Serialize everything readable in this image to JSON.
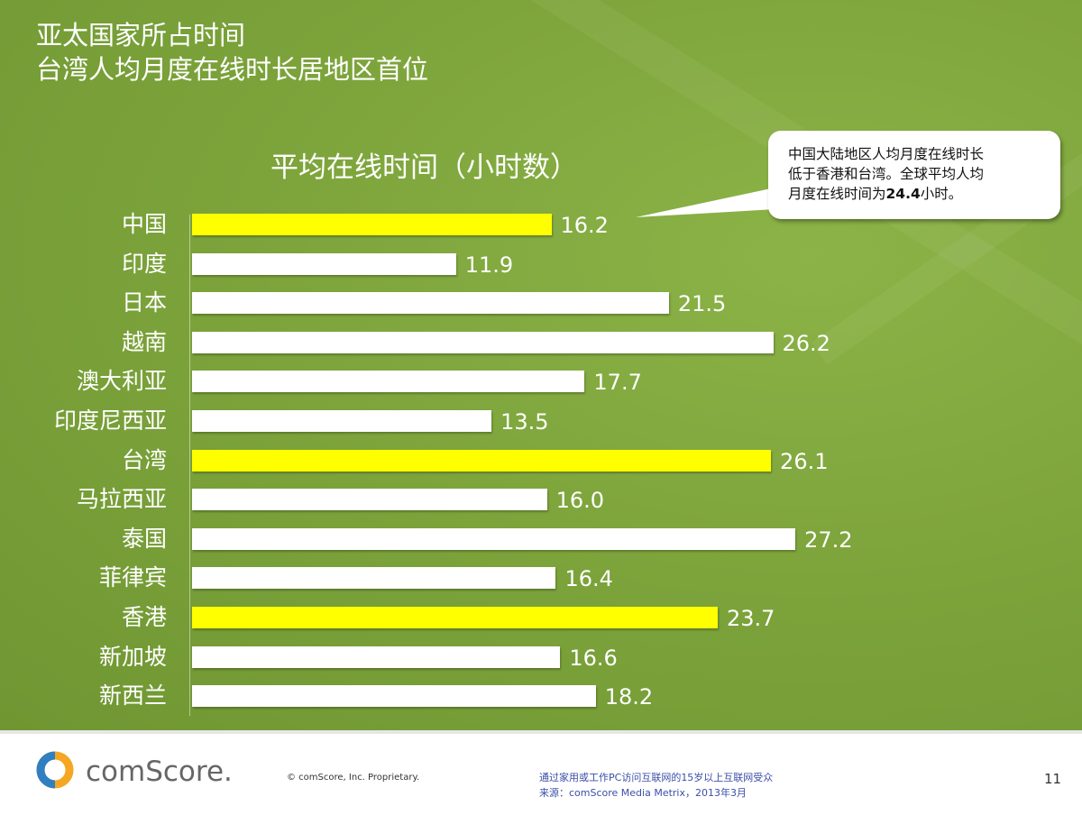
{
  "title": {
    "line1": "亚太国家所占时间",
    "line2": "台湾人均月度在线时长居地区首位"
  },
  "callout": {
    "line1": "中国大陆地区人均月度在线时长",
    "line2": "低于香港和台湾。全球平均人均",
    "line3_pre": "月度在线时间为",
    "line3_bold": "24.4",
    "line3_post": "小时。"
  },
  "chart_data": {
    "type": "bar",
    "orientation": "horizontal",
    "title": "平均在线时间（小时数）",
    "categories": [
      "中国",
      "印度",
      "日本",
      "越南",
      "澳大利亚",
      "印度尼西亚",
      "台湾",
      "马拉西亚",
      "泰国",
      "菲律宾",
      "香港",
      "新加坡",
      "新西兰"
    ],
    "values": [
      16.2,
      11.9,
      21.5,
      26.2,
      17.7,
      13.5,
      26.1,
      16.0,
      27.2,
      16.4,
      23.7,
      16.6,
      18.2
    ],
    "value_labels": [
      "16.2",
      "11.9",
      "21.5",
      "26.2",
      "17.7",
      "13.5",
      "26.1",
      "16.0",
      "27.2",
      "16.4",
      "23.7",
      "16.6",
      "18.2"
    ],
    "highlighted": [
      "中国",
      "台湾",
      "香港"
    ],
    "xlim": [
      0,
      30
    ],
    "xlabel": "",
    "ylabel": ""
  },
  "colors": {
    "highlight_bar": "#ffff00",
    "normal_bar": "#ffffff",
    "background": "#7ea53c"
  },
  "footer": {
    "logo_text": "comScore.",
    "copyright": "© comScore, Inc.    Proprietary.",
    "note1": "通过家用或工作PC访问互联网的15岁以上互联网受众",
    "note2": "来源：comScore Media Metrix，2013年3月",
    "page_number": "11"
  }
}
